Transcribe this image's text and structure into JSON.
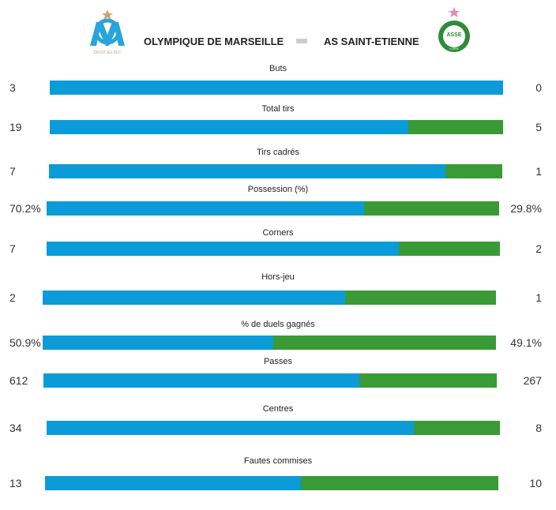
{
  "header": {
    "home": "OLYMPIQUE DE MARSEILLE",
    "away": "AS SAINT-ETIENNE",
    "home_badge": "DROIT AU BUT",
    "away_badge": [
      "ASSE",
      "LOIRE"
    ]
  },
  "stats": [
    {
      "label": "Buts",
      "home": 3,
      "away": 0
    },
    {
      "label": "Total tirs",
      "home": 19,
      "away": 5
    },
    {
      "label": "Tirs cadrés",
      "home": 7,
      "away": 1
    },
    {
      "label": "Possession (%)",
      "home": 70.2,
      "away": 29.8,
      "home_label": "70.2%",
      "away_label": "29.8%"
    },
    {
      "label": "Corners",
      "home": 7,
      "away": 2
    },
    {
      "label": "Hors-jeu",
      "home": 2,
      "away": 1
    },
    {
      "label": "% de duels gagnés",
      "home": 50.9,
      "away": 49.1,
      "home_label": "50.9%",
      "away_label": "49.1%"
    },
    {
      "label": "Passes",
      "home": 612,
      "away": 267
    },
    {
      "label": "Centres",
      "home": 34,
      "away": 8
    },
    {
      "label": "Fautes commises",
      "home": 13,
      "away": 10
    }
  ]
}
